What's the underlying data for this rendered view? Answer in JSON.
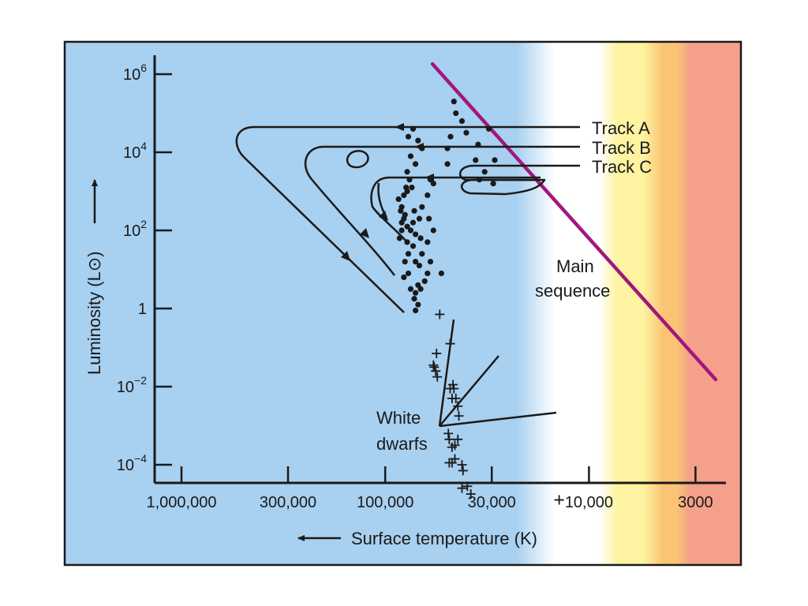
{
  "chart_data": {
    "type": "scatter",
    "title": "",
    "xlabel": "Surface temperature (K)",
    "ylabel": "Luminosity (L⊙)",
    "x_scale": "log-reversed",
    "y_scale": "log",
    "x_ticks": [
      {
        "value": 1000000,
        "label": "1,000,000"
      },
      {
        "value": 300000,
        "label": "300,000"
      },
      {
        "value": 100000,
        "label": "100,000"
      },
      {
        "value": 30000,
        "label": "30,000"
      },
      {
        "value": 10000,
        "label": "10,000"
      },
      {
        "value": 3000,
        "label": "3000"
      }
    ],
    "y_ticks": [
      {
        "value": 1000000,
        "base": "10",
        "exp": "6"
      },
      {
        "value": 10000,
        "base": "10",
        "exp": "4"
      },
      {
        "value": 100,
        "base": "10",
        "exp": "2"
      },
      {
        "value": 1,
        "base": "1",
        "exp": ""
      },
      {
        "value": 0.01,
        "base": "10",
        "exp": "−2"
      },
      {
        "value": 0.0001,
        "base": "10",
        "exp": "−4"
      }
    ],
    "tracks": [
      {
        "label": "Track A"
      },
      {
        "label": "Track B"
      },
      {
        "label": "Track C"
      }
    ],
    "main_sequence_label": [
      "Main",
      "sequence"
    ],
    "white_dwarfs_label": [
      "White",
      "dwarfs"
    ],
    "colors": {
      "background_hot": "#a8d0f0",
      "white_band": "#ffffff",
      "yellow_band": "#fdf3a0",
      "orange_band": "#f9c474",
      "red_band": "#f4a08a",
      "main_sequence": "#a3167e",
      "ink": "#1a1a1a"
    },
    "nuclei": [
      [
        46,
        5.3
      ],
      [
        45,
        5.0
      ],
      [
        49.5,
        4.1
      ],
      [
        49.5,
        3.7
      ],
      [
        47.8,
        4.4
      ],
      [
        42,
        4.8
      ],
      [
        40,
        4.5
      ],
      [
        35,
        4.2
      ],
      [
        31,
        4.6
      ],
      [
        36,
        3.8
      ],
      [
        32.5,
        3.5
      ],
      [
        34.5,
        3.3
      ],
      [
        29.5,
        3.2
      ],
      [
        29,
        3.8
      ],
      [
        73,
        4.6
      ],
      [
        77,
        4.4
      ],
      [
        69,
        4.3
      ],
      [
        66,
        4.1
      ],
      [
        75,
        3.9
      ],
      [
        71,
        3.7
      ],
      [
        60,
        3.3
      ],
      [
        58,
        3.2
      ],
      [
        78,
        3.5
      ],
      [
        76,
        3.3
      ],
      [
        74,
        3.1
      ],
      [
        79,
        3.1
      ],
      [
        81,
        2.9
      ],
      [
        83,
        2.6
      ],
      [
        80,
        2.4
      ],
      [
        84,
        2.5
      ],
      [
        86,
        2.8
      ],
      [
        81,
        2.3
      ],
      [
        83,
        2.2
      ],
      [
        78,
        2.1
      ],
      [
        83,
        2.0
      ],
      [
        85,
        1.8
      ],
      [
        62,
        2.9
      ],
      [
        66,
        2.6
      ],
      [
        68,
        2.3
      ],
      [
        73,
        2.2
      ],
      [
        75,
        2.0
      ],
      [
        71,
        1.9
      ],
      [
        67,
        1.8
      ],
      [
        73,
        1.6
      ],
      [
        78,
        1.7
      ],
      [
        77,
        1.4
      ],
      [
        71,
        1.2
      ],
      [
        61,
        2.3
      ],
      [
        58,
        2.0
      ],
      [
        62,
        1.7
      ],
      [
        66,
        1.4
      ],
      [
        68,
        1.1
      ],
      [
        62,
        0.9
      ],
      [
        64,
        0.7
      ],
      [
        69,
        0.6
      ],
      [
        71,
        0.4
      ],
      [
        77,
        0.9
      ],
      [
        75,
        0.5
      ],
      [
        60,
        1.2
      ],
      [
        67,
        0.5
      ],
      [
        69,
        0.1
      ],
      [
        72,
        0.25
      ],
      [
        71,
        -0.05
      ],
      [
        53,
        0.9
      ],
      [
        72,
        2.5
      ],
      [
        78,
        3.0
      ],
      [
        80,
        1.2
      ],
      [
        81,
        0.8
      ]
    ],
    "white_dwarfs": [
      [
        56,
        -1.15
      ],
      [
        57.5,
        -1.5
      ],
      [
        56.5,
        -1.6
      ],
      [
        55.5,
        -1.75
      ],
      [
        58,
        -1.45
      ],
      [
        48,
        -0.9
      ],
      [
        54,
        -0.15
      ],
      [
        46.5,
        -1.95
      ],
      [
        46,
        -2.05
      ],
      [
        48,
        -2.05
      ],
      [
        45,
        -2.3
      ],
      [
        47,
        -2.3
      ],
      [
        44,
        -2.5
      ],
      [
        43.5,
        -2.75
      ],
      [
        49,
        -3.2
      ],
      [
        48.5,
        -3.35
      ],
      [
        47,
        -3.55
      ],
      [
        45.5,
        -3.5
      ],
      [
        44,
        -3.35
      ],
      [
        45.5,
        -3.85
      ],
      [
        47,
        -3.95
      ],
      [
        48.5,
        -3.95
      ],
      [
        42,
        -4.0
      ],
      [
        41.5,
        -4.15
      ],
      [
        42,
        -4.6
      ],
      [
        39.5,
        -4.55
      ],
      [
        38,
        -4.75
      ],
      [
        14,
        -4.9
      ]
    ]
  }
}
